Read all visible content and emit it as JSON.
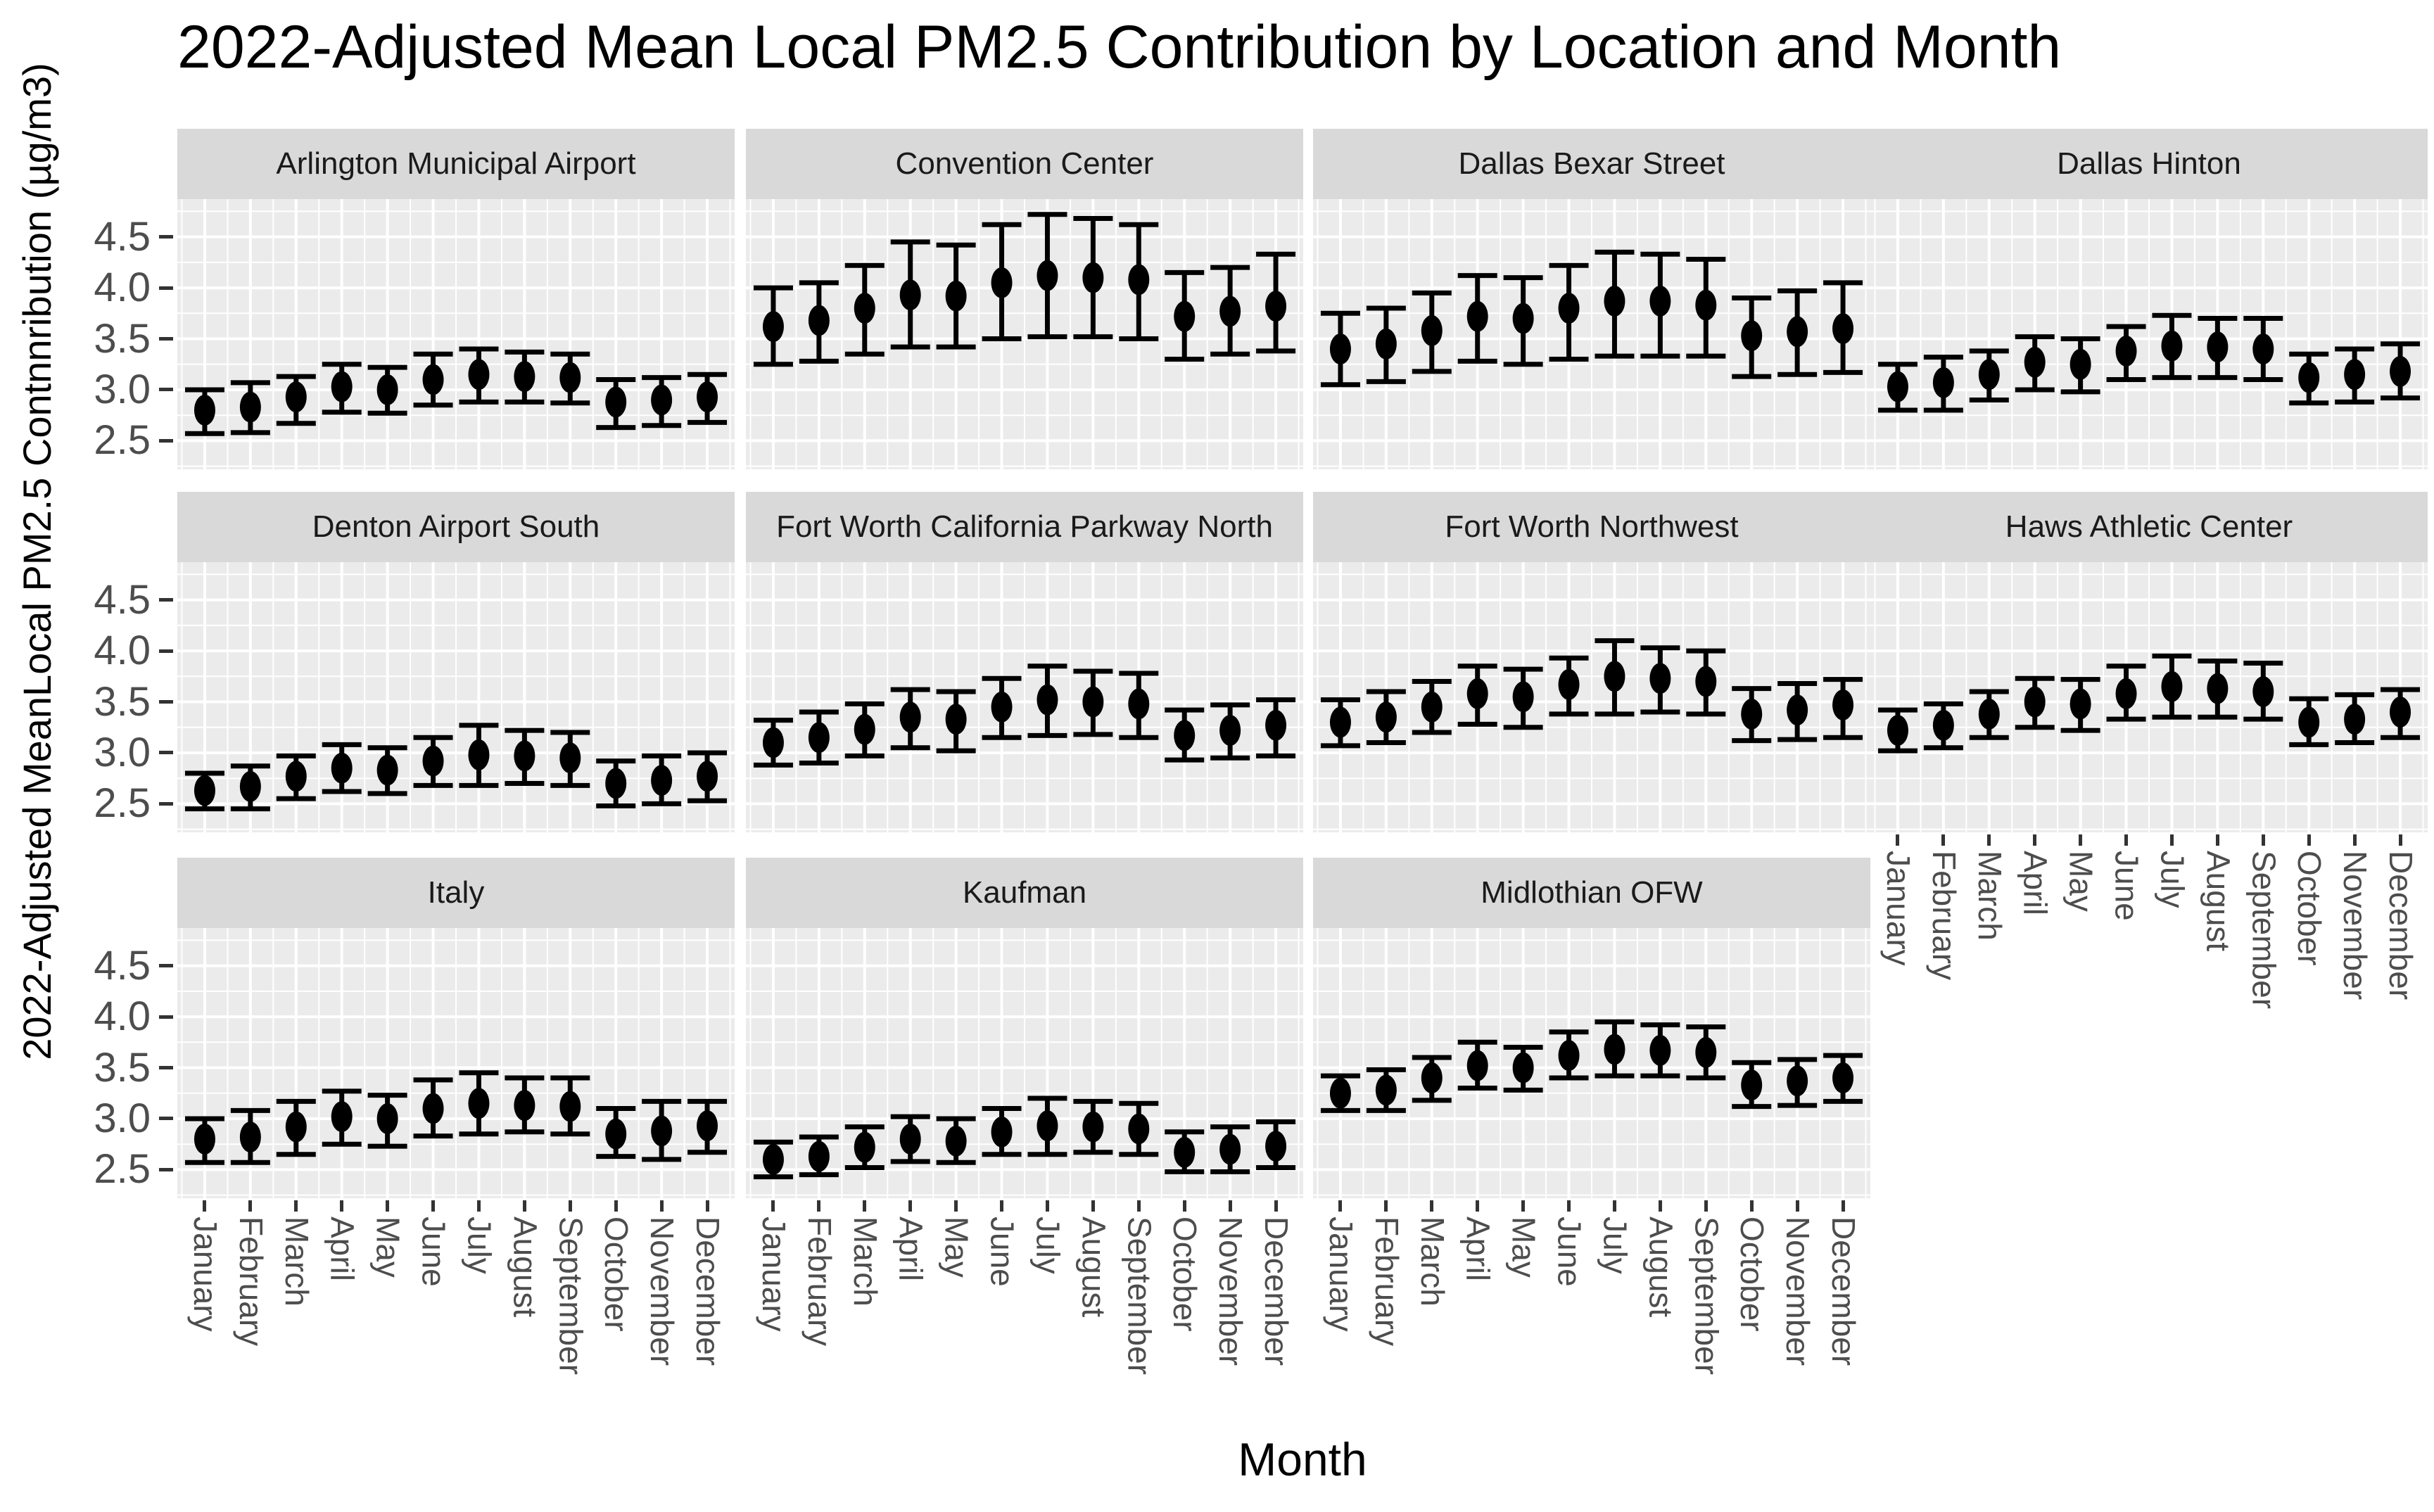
{
  "title": "2022-Adjusted Mean Local PM2.5 Contribution by Location and Month",
  "axes": {
    "x_title": "Month",
    "y_title": "2022-Adjusted MeanLocal PM2.5 Contnnribution (µg/m3)",
    "y_ticks": [
      2.5,
      3.0,
      3.5,
      4.0,
      4.5
    ],
    "y_tick_labels": [
      "2.5",
      "3.0",
      "3.5",
      "4.0",
      "4.5"
    ],
    "y_minor_ticks": [
      2.25,
      2.75,
      3.25,
      3.75,
      4.25,
      4.75
    ],
    "y_range": [
      2.22,
      4.87
    ]
  },
  "style": {
    "panel_bg": "#EBEBEB",
    "strip_bg": "#D9D9D9",
    "grid_color": "#FFFFFF",
    "data_color": "#000000",
    "axis_text_color": "#4D4D4D",
    "strip_text_color": "#1A1A1A",
    "title_color": "#000000"
  },
  "chart_data": {
    "type": "scatter",
    "subtype": "pointrange-faceted",
    "title": "2022-Adjusted Mean Local PM2.5 Contribution by Location and Month",
    "xlabel": "Month",
    "ylabel": "2022-Adjusted MeanLocal PM2.5 Contnnribution (µg/m3)",
    "ylim": [
      2.2,
      4.9
    ],
    "grid": true,
    "legend": "none",
    "error_bars": true,
    "categories": [
      "January",
      "February",
      "March",
      "April",
      "May",
      "June",
      "July",
      "August",
      "September",
      "October",
      "November",
      "December"
    ],
    "facets": [
      {
        "location": "Arlington Municipal Airport",
        "mean": [
          2.8,
          2.83,
          2.93,
          3.03,
          3.0,
          3.1,
          3.15,
          3.13,
          3.12,
          2.88,
          2.9,
          2.93
        ],
        "lower": [
          2.57,
          2.58,
          2.67,
          2.78,
          2.77,
          2.85,
          2.88,
          2.88,
          2.87,
          2.63,
          2.65,
          2.68
        ],
        "upper": [
          3.0,
          3.07,
          3.13,
          3.25,
          3.22,
          3.35,
          3.4,
          3.37,
          3.35,
          3.1,
          3.12,
          3.15
        ]
      },
      {
        "location": "Convention Center",
        "mean": [
          3.62,
          3.68,
          3.8,
          3.93,
          3.92,
          4.05,
          4.12,
          4.1,
          4.08,
          3.72,
          3.77,
          3.82
        ],
        "lower": [
          3.25,
          3.28,
          3.35,
          3.42,
          3.42,
          3.5,
          3.52,
          3.52,
          3.5,
          3.3,
          3.35,
          3.38
        ],
        "upper": [
          4.0,
          4.05,
          4.22,
          4.45,
          4.42,
          4.62,
          4.72,
          4.68,
          4.62,
          4.15,
          4.2,
          4.33
        ]
      },
      {
        "location": "Dallas Bexar Street",
        "mean": [
          3.4,
          3.45,
          3.58,
          3.72,
          3.7,
          3.8,
          3.87,
          3.87,
          3.83,
          3.53,
          3.57,
          3.6
        ],
        "lower": [
          3.05,
          3.08,
          3.18,
          3.28,
          3.25,
          3.3,
          3.33,
          3.33,
          3.33,
          3.13,
          3.15,
          3.17
        ],
        "upper": [
          3.75,
          3.8,
          3.95,
          4.12,
          4.1,
          4.22,
          4.35,
          4.33,
          4.28,
          3.9,
          3.97,
          4.05
        ]
      },
      {
        "location": "Dallas Hinton",
        "mean": [
          3.03,
          3.07,
          3.15,
          3.27,
          3.25,
          3.38,
          3.43,
          3.42,
          3.4,
          3.12,
          3.15,
          3.18
        ],
        "lower": [
          2.8,
          2.8,
          2.9,
          3.0,
          2.98,
          3.1,
          3.12,
          3.12,
          3.1,
          2.87,
          2.88,
          2.92
        ],
        "upper": [
          3.25,
          3.32,
          3.38,
          3.52,
          3.5,
          3.62,
          3.73,
          3.7,
          3.7,
          3.35,
          3.4,
          3.45
        ]
      },
      {
        "location": "Denton Airport South",
        "mean": [
          2.63,
          2.67,
          2.77,
          2.85,
          2.83,
          2.92,
          2.98,
          2.97,
          2.95,
          2.7,
          2.73,
          2.77
        ],
        "lower": [
          2.45,
          2.45,
          2.55,
          2.62,
          2.6,
          2.68,
          2.68,
          2.7,
          2.68,
          2.48,
          2.5,
          2.53
        ],
        "upper": [
          2.8,
          2.87,
          2.97,
          3.08,
          3.05,
          3.15,
          3.27,
          3.22,
          3.2,
          2.92,
          2.97,
          3.0
        ]
      },
      {
        "location": "Fort Worth California Parkway North",
        "mean": [
          3.1,
          3.15,
          3.23,
          3.35,
          3.33,
          3.45,
          3.52,
          3.5,
          3.48,
          3.17,
          3.22,
          3.27
        ],
        "lower": [
          2.88,
          2.9,
          2.97,
          3.05,
          3.02,
          3.15,
          3.17,
          3.18,
          3.15,
          2.93,
          2.95,
          2.97
        ],
        "upper": [
          3.32,
          3.4,
          3.48,
          3.62,
          3.6,
          3.73,
          3.85,
          3.8,
          3.78,
          3.42,
          3.47,
          3.52
        ]
      },
      {
        "location": "Fort Worth Northwest",
        "mean": [
          3.3,
          3.35,
          3.45,
          3.58,
          3.55,
          3.67,
          3.75,
          3.73,
          3.7,
          3.38,
          3.42,
          3.47
        ],
        "lower": [
          3.07,
          3.1,
          3.2,
          3.28,
          3.25,
          3.38,
          3.38,
          3.4,
          3.38,
          3.12,
          3.13,
          3.15
        ],
        "upper": [
          3.52,
          3.6,
          3.7,
          3.85,
          3.82,
          3.93,
          4.1,
          4.03,
          4.0,
          3.63,
          3.68,
          3.72
        ]
      },
      {
        "location": "Haws Athletic Center",
        "mean": [
          3.22,
          3.27,
          3.38,
          3.5,
          3.48,
          3.58,
          3.65,
          3.63,
          3.6,
          3.3,
          3.33,
          3.4
        ],
        "lower": [
          3.02,
          3.05,
          3.15,
          3.25,
          3.22,
          3.33,
          3.35,
          3.35,
          3.33,
          3.08,
          3.1,
          3.15
        ],
        "upper": [
          3.42,
          3.48,
          3.6,
          3.73,
          3.72,
          3.85,
          3.95,
          3.9,
          3.88,
          3.53,
          3.57,
          3.62
        ]
      },
      {
        "location": "Italy",
        "mean": [
          2.8,
          2.82,
          2.92,
          3.02,
          3.0,
          3.1,
          3.15,
          3.13,
          3.12,
          2.85,
          2.88,
          2.93
        ],
        "lower": [
          2.57,
          2.57,
          2.65,
          2.75,
          2.73,
          2.83,
          2.85,
          2.87,
          2.85,
          2.63,
          2.6,
          2.67
        ],
        "upper": [
          3.0,
          3.08,
          3.17,
          3.27,
          3.23,
          3.38,
          3.45,
          3.4,
          3.4,
          3.1,
          3.17,
          3.17
        ]
      },
      {
        "location": "Kaufman",
        "mean": [
          2.6,
          2.63,
          2.72,
          2.8,
          2.78,
          2.87,
          2.93,
          2.92,
          2.9,
          2.67,
          2.7,
          2.73
        ],
        "lower": [
          2.43,
          2.45,
          2.52,
          2.58,
          2.57,
          2.65,
          2.65,
          2.67,
          2.65,
          2.48,
          2.48,
          2.52
        ],
        "upper": [
          2.77,
          2.82,
          2.92,
          3.02,
          3.0,
          3.1,
          3.2,
          3.17,
          3.15,
          2.87,
          2.92,
          2.97
        ]
      },
      {
        "location": "Midlothian OFW",
        "mean": [
          3.25,
          3.28,
          3.4,
          3.52,
          3.5,
          3.62,
          3.68,
          3.67,
          3.65,
          3.33,
          3.37,
          3.4
        ],
        "lower": [
          3.08,
          3.08,
          3.18,
          3.3,
          3.28,
          3.4,
          3.42,
          3.42,
          3.4,
          3.12,
          3.13,
          3.17
        ],
        "upper": [
          3.42,
          3.48,
          3.6,
          3.75,
          3.7,
          3.85,
          3.95,
          3.92,
          3.9,
          3.55,
          3.58,
          3.62
        ]
      }
    ]
  }
}
